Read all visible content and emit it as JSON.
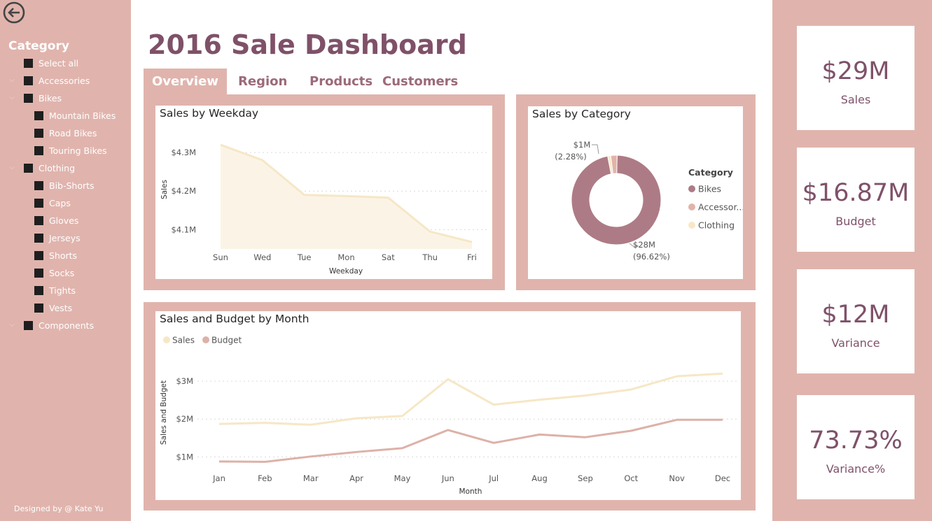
{
  "page_title": "2016 Sale Dashboard",
  "credit": "Designed by @ Kate Yu",
  "tabs": [
    {
      "label": "Overview",
      "active": true
    },
    {
      "label": "Region",
      "active": false
    },
    {
      "label": "Products",
      "active": false
    },
    {
      "label": "Customers",
      "active": false
    }
  ],
  "slicer": {
    "title": "Category",
    "items": [
      {
        "label": "Select all",
        "level": 0,
        "expandable": false
      },
      {
        "label": "Accessories",
        "level": 0,
        "expandable": true
      },
      {
        "label": "Bikes",
        "level": 0,
        "expandable": true
      },
      {
        "label": "Mountain Bikes",
        "level": 1,
        "expandable": false
      },
      {
        "label": "Road Bikes",
        "level": 1,
        "expandable": false
      },
      {
        "label": "Touring Bikes",
        "level": 1,
        "expandable": false
      },
      {
        "label": "Clothing",
        "level": 0,
        "expandable": true
      },
      {
        "label": "Bib-Shorts",
        "level": 1,
        "expandable": false
      },
      {
        "label": "Caps",
        "level": 1,
        "expandable": false
      },
      {
        "label": "Gloves",
        "level": 1,
        "expandable": false
      },
      {
        "label": "Jerseys",
        "level": 1,
        "expandable": false
      },
      {
        "label": "Shorts",
        "level": 1,
        "expandable": false
      },
      {
        "label": "Socks",
        "level": 1,
        "expandable": false
      },
      {
        "label": "Tights",
        "level": 1,
        "expandable": false
      },
      {
        "label": "Vests",
        "level": 1,
        "expandable": false
      },
      {
        "label": "Components",
        "level": 0,
        "expandable": true
      }
    ]
  },
  "kpis": [
    {
      "value": "$29M",
      "label": "Sales"
    },
    {
      "value": "$16.87M",
      "label": "Budget"
    },
    {
      "value": "$12M",
      "label": "Variance"
    },
    {
      "value": "73.73%",
      "label": "Variance%"
    }
  ],
  "colors": {
    "panel": "#e0b4ad",
    "title": "#7f5169",
    "sales": "#f6e7c6",
    "budget": "#ddb1a8",
    "bikes": "#ad7b86",
    "accessories": "#e2b3a9",
    "clothing": "#f9e8c7"
  },
  "chart_data": [
    {
      "type": "area",
      "title": "Sales by Weekday",
      "xlabel": "Weekday",
      "ylabel": "Sales",
      "categories": [
        "Sun",
        "Wed",
        "Tue",
        "Mon",
        "Sat",
        "Thu",
        "Fri"
      ],
      "values": [
        4.32,
        4.28,
        4.19,
        4.187,
        4.183,
        4.095,
        4.068
      ],
      "y_ticks": [
        {
          "v": 4.3,
          "label": "$4.3M"
        },
        {
          "v": 4.2,
          "label": "$4.2M"
        },
        {
          "v": 4.1,
          "label": "$4.1M"
        }
      ],
      "ylim": [
        4.05,
        4.34
      ],
      "grid": true
    },
    {
      "type": "pie",
      "variant": "donut",
      "title": "Sales by Category",
      "legend_title": "Category",
      "legend_position": "right",
      "slices": [
        {
          "name": "Bikes",
          "legend": "Bikes",
          "share": 96.62,
          "label_value": "$28M",
          "label_pct": "(96.62%)"
        },
        {
          "name": "Accessories",
          "legend": "Accessor...",
          "share": 2.28,
          "label_value": "$1M",
          "label_pct": "(2.28%)"
        },
        {
          "name": "Clothing",
          "legend": "Clothing",
          "share": 1.1
        }
      ]
    },
    {
      "type": "line",
      "title": "Sales and Budget by Month",
      "xlabel": "Month",
      "ylabel": "Sales and Budget",
      "categories": [
        "Jan",
        "Feb",
        "Mar",
        "Apr",
        "May",
        "Jun",
        "Jul",
        "Aug",
        "Sep",
        "Oct",
        "Nov",
        "Dec"
      ],
      "series": [
        {
          "name": "Sales",
          "values": [
            1.87,
            1.9,
            1.85,
            2.02,
            2.08,
            3.05,
            2.38,
            2.51,
            2.62,
            2.78,
            3.13,
            3.2
          ]
        },
        {
          "name": "Budget",
          "values": [
            0.88,
            0.87,
            1.01,
            1.13,
            1.23,
            1.71,
            1.37,
            1.59,
            1.52,
            1.69,
            1.98,
            1.98
          ]
        }
      ],
      "y_ticks": [
        {
          "v": 3,
          "label": "$3M"
        },
        {
          "v": 2,
          "label": "$2M"
        },
        {
          "v": 1,
          "label": "$1M"
        }
      ],
      "ylim": [
        0.6,
        3.5
      ],
      "legend_position": "top-left",
      "grid": true
    }
  ]
}
